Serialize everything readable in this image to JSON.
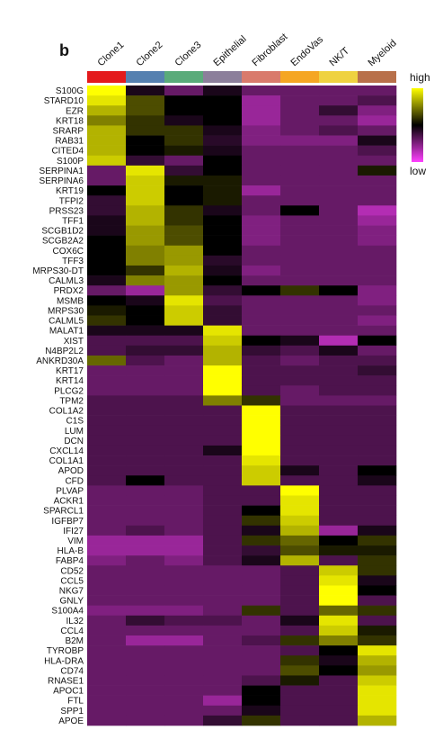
{
  "chart_data": {
    "type": "heatmap",
    "panel_label": "b",
    "columns": [
      "Clone1",
      "Clone2",
      "Clone3",
      "Epithelial",
      "Fibroblast",
      "EndoVas",
      "NK/T",
      "Myeloid"
    ],
    "column_colors": [
      "#e41a1c",
      "#5580b0",
      "#5aab7a",
      "#8c7f9b",
      "#d97a6c",
      "#f5a623",
      "#efd240",
      "#b8704a"
    ],
    "rows": [
      "S100G",
      "STARD10",
      "EZR",
      "KRT18",
      "SRARP",
      "RAB31",
      "CITED4",
      "S100P",
      "SERPINA1",
      "SERPINA6",
      "KRT19",
      "TFPI2",
      "PRSS23",
      "TFF1",
      "SCGB1D2",
      "SCGB2A2",
      "COX6C",
      "TFF3",
      "MRPS30-DT",
      "CALML3",
      "PRDX2",
      "MSMB",
      "MRPS30",
      "CALML5",
      "MALAT1",
      "XIST",
      "N4BP2L2",
      "ANKRD30A",
      "KRT17",
      "KRT14",
      "PLCG2",
      "TPM2",
      "COL1A2",
      "C1S",
      "LUM",
      "DCN",
      "CXCL14",
      "COL1A1",
      "APOD",
      "CFD",
      "PLVAP",
      "ACKR1",
      "SPARCL1",
      "IGFBP7",
      "IFI27",
      "VIM",
      "HLA-B",
      "FABP4",
      "CD52",
      "CCL5",
      "NKG7",
      "GNLY",
      "S100A4",
      "IL32",
      "CCL4",
      "B2M",
      "TYROBP",
      "HLA-DRA",
      "CD74",
      "RNASE1",
      "APOC1",
      "FTL",
      "SPP1",
      "APOE"
    ],
    "values": [
      [
        1,
        0.45,
        0.3,
        0.45,
        0.3,
        0.3,
        0.3,
        0.3
      ],
      [
        0.95,
        0.65,
        0.5,
        0.5,
        0.2,
        0.3,
        0.3,
        0.35
      ],
      [
        0.85,
        0.65,
        0.5,
        0.5,
        0.2,
        0.3,
        0.4,
        0.25
      ],
      [
        0.75,
        0.6,
        0.45,
        0.5,
        0.2,
        0.3,
        0.3,
        0.2
      ],
      [
        0.85,
        0.6,
        0.6,
        0.45,
        0.25,
        0.3,
        0.35,
        0.3
      ],
      [
        0.85,
        0.5,
        0.6,
        0.42,
        0.25,
        0.25,
        0.25,
        0.45
      ],
      [
        0.85,
        0.5,
        0.55,
        0.45,
        0.3,
        0.3,
        0.3,
        0.35
      ],
      [
        0.9,
        0.4,
        0.3,
        0.5,
        0.3,
        0.3,
        0.3,
        0.3
      ],
      [
        0.3,
        0.95,
        0.4,
        0.5,
        0.3,
        0.3,
        0.3,
        0.55
      ],
      [
        0.3,
        0.9,
        0.55,
        0.55,
        0.3,
        0.3,
        0.3,
        0.3
      ],
      [
        0.5,
        0.9,
        0.5,
        0.55,
        0.2,
        0.3,
        0.3,
        0.3
      ],
      [
        0.4,
        0.9,
        0.5,
        0.55,
        0.3,
        0.3,
        0.3,
        0.3
      ],
      [
        0.4,
        0.85,
        0.6,
        0.45,
        0.3,
        0.5,
        0.3,
        0.15
      ],
      [
        0.45,
        0.85,
        0.6,
        0.5,
        0.25,
        0.3,
        0.3,
        0.2
      ],
      [
        0.45,
        0.8,
        0.65,
        0.5,
        0.25,
        0.3,
        0.3,
        0.25
      ],
      [
        0.5,
        0.8,
        0.65,
        0.5,
        0.25,
        0.3,
        0.3,
        0.25
      ],
      [
        0.5,
        0.75,
        0.8,
        0.5,
        0.3,
        0.3,
        0.3,
        0.3
      ],
      [
        0.5,
        0.75,
        0.8,
        0.42,
        0.3,
        0.3,
        0.3,
        0.3
      ],
      [
        0.5,
        0.6,
        0.85,
        0.45,
        0.25,
        0.3,
        0.3,
        0.3
      ],
      [
        0.45,
        0.75,
        0.8,
        0.5,
        0.3,
        0.3,
        0.3,
        0.3
      ],
      [
        0.3,
        0.2,
        0.8,
        0.4,
        0.5,
        0.6,
        0.5,
        0.25
      ],
      [
        0.5,
        0.45,
        0.95,
        0.35,
        0.3,
        0.3,
        0.3,
        0.25
      ],
      [
        0.55,
        0.5,
        0.9,
        0.4,
        0.3,
        0.3,
        0.3,
        0.3
      ],
      [
        0.6,
        0.5,
        0.9,
        0.4,
        0.3,
        0.3,
        0.3,
        0.25
      ],
      [
        0.45,
        0.45,
        0.45,
        0.95,
        0.3,
        0.3,
        0.3,
        0.3
      ],
      [
        0.35,
        0.35,
        0.35,
        0.9,
        0.5,
        0.45,
        0.15,
        0.5
      ],
      [
        0.35,
        0.4,
        0.4,
        0.85,
        0.4,
        0.35,
        0.45,
        0.3
      ],
      [
        0.7,
        0.35,
        0.3,
        0.85,
        0.35,
        0.3,
        0.35,
        0.35
      ],
      [
        0.3,
        0.3,
        0.3,
        1,
        0.35,
        0.35,
        0.35,
        0.4
      ],
      [
        0.3,
        0.3,
        0.3,
        1,
        0.35,
        0.35,
        0.35,
        0.35
      ],
      [
        0.3,
        0.3,
        0.3,
        1,
        0.35,
        0.3,
        0.35,
        0.35
      ],
      [
        0.35,
        0.35,
        0.35,
        0.75,
        0.6,
        0.3,
        0.3,
        0.3
      ],
      [
        0.35,
        0.35,
        0.35,
        0.35,
        1,
        0.35,
        0.35,
        0.35
      ],
      [
        0.35,
        0.35,
        0.35,
        0.35,
        1,
        0.35,
        0.35,
        0.35
      ],
      [
        0.35,
        0.35,
        0.35,
        0.35,
        1,
        0.35,
        0.35,
        0.35
      ],
      [
        0.35,
        0.35,
        0.35,
        0.35,
        1,
        0.35,
        0.35,
        0.35
      ],
      [
        0.35,
        0.35,
        0.35,
        0.45,
        1,
        0.35,
        0.35,
        0.35
      ],
      [
        0.35,
        0.35,
        0.35,
        0.35,
        0.95,
        0.35,
        0.35,
        0.35
      ],
      [
        0.35,
        0.35,
        0.35,
        0.35,
        0.9,
        0.45,
        0.35,
        0.5
      ],
      [
        0.35,
        0.5,
        0.35,
        0.35,
        0.9,
        0.35,
        0.35,
        0.45
      ],
      [
        0.3,
        0.3,
        0.3,
        0.35,
        0.35,
        1,
        0.35,
        0.35
      ],
      [
        0.3,
        0.3,
        0.3,
        0.35,
        0.35,
        0.95,
        0.35,
        0.35
      ],
      [
        0.3,
        0.3,
        0.3,
        0.35,
        0.5,
        0.95,
        0.35,
        0.35
      ],
      [
        0.3,
        0.3,
        0.3,
        0.35,
        0.6,
        0.9,
        0.35,
        0.35
      ],
      [
        0.3,
        0.35,
        0.3,
        0.35,
        0.45,
        0.85,
        0.2,
        0.45
      ],
      [
        0.2,
        0.2,
        0.2,
        0.35,
        0.6,
        0.7,
        0.5,
        0.6
      ],
      [
        0.2,
        0.2,
        0.2,
        0.35,
        0.4,
        0.65,
        0.55,
        0.55
      ],
      [
        0.25,
        0.3,
        0.25,
        0.35,
        0.45,
        0.85,
        0.35,
        0.6
      ],
      [
        0.3,
        0.3,
        0.3,
        0.3,
        0.3,
        0.35,
        0.9,
        0.6
      ],
      [
        0.3,
        0.3,
        0.3,
        0.3,
        0.3,
        0.35,
        0.95,
        0.45
      ],
      [
        0.3,
        0.3,
        0.3,
        0.3,
        0.3,
        0.35,
        1,
        0.5
      ],
      [
        0.3,
        0.3,
        0.3,
        0.3,
        0.3,
        0.35,
        1,
        0.35
      ],
      [
        0.25,
        0.25,
        0.25,
        0.3,
        0.6,
        0.35,
        0.7,
        0.6
      ],
      [
        0.3,
        0.4,
        0.35,
        0.35,
        0.3,
        0.45,
        0.95,
        0.35
      ],
      [
        0.3,
        0.3,
        0.3,
        0.3,
        0.3,
        0.35,
        0.9,
        0.55
      ],
      [
        0.3,
        0.2,
        0.2,
        0.3,
        0.35,
        0.6,
        0.75,
        0.6
      ],
      [
        0.3,
        0.3,
        0.3,
        0.3,
        0.3,
        0.35,
        0.5,
        0.95
      ],
      [
        0.3,
        0.3,
        0.3,
        0.3,
        0.3,
        0.6,
        0.45,
        0.85
      ],
      [
        0.3,
        0.3,
        0.3,
        0.3,
        0.3,
        0.65,
        0.5,
        0.8
      ],
      [
        0.3,
        0.3,
        0.3,
        0.3,
        0.35,
        0.55,
        0.35,
        0.9
      ],
      [
        0.3,
        0.3,
        0.3,
        0.3,
        0.5,
        0.35,
        0.35,
        0.95
      ],
      [
        0.3,
        0.3,
        0.3,
        0.2,
        0.5,
        0.35,
        0.35,
        0.95
      ],
      [
        0.3,
        0.3,
        0.3,
        0.3,
        0.45,
        0.35,
        0.35,
        0.95
      ],
      [
        0.3,
        0.3,
        0.3,
        0.4,
        0.6,
        0.35,
        0.35,
        0.85
      ]
    ],
    "zlim": [
      0,
      1
    ],
    "colorscale": [
      "#ff40ff",
      "#000000",
      "#ffff00"
    ],
    "colorbar_high_label": "high",
    "colorbar_low_label": "low"
  }
}
